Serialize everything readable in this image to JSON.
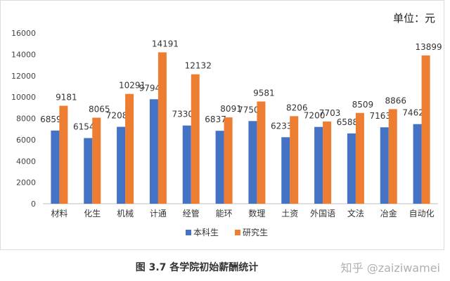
{
  "unit_label": "单位：元",
  "caption": "图 3.7    各学院初始薪酬统计",
  "watermark": "知乎 @zaiziwamei",
  "colors": {
    "undergrad": "#4472C4",
    "grad": "#ED7D31",
    "axis": "#bfbfbf",
    "text": "#333333"
  },
  "chart_data": {
    "type": "bar",
    "title": "",
    "xlabel": "",
    "ylabel": "",
    "ylim": [
      0,
      16000
    ],
    "yticks": [
      0,
      2000,
      4000,
      6000,
      8000,
      10000,
      12000,
      14000,
      16000
    ],
    "grid": false,
    "legend": "bottom",
    "categories": [
      "材料",
      "化生",
      "机械",
      "计通",
      "经管",
      "能环",
      "数理",
      "土资",
      "外国语",
      "文法",
      "冶金",
      "自动化"
    ],
    "series": [
      {
        "name": "本科生",
        "values": [
          6859,
          6154,
          7208,
          9794,
          7330,
          6837,
          7750,
          6233,
          7200,
          6588,
          7163,
          7462
        ]
      },
      {
        "name": "研究生",
        "values": [
          9181,
          8065,
          10291,
          14191,
          12132,
          8091,
          9581,
          8206,
          7703,
          8509,
          8866,
          13899
        ]
      }
    ]
  }
}
